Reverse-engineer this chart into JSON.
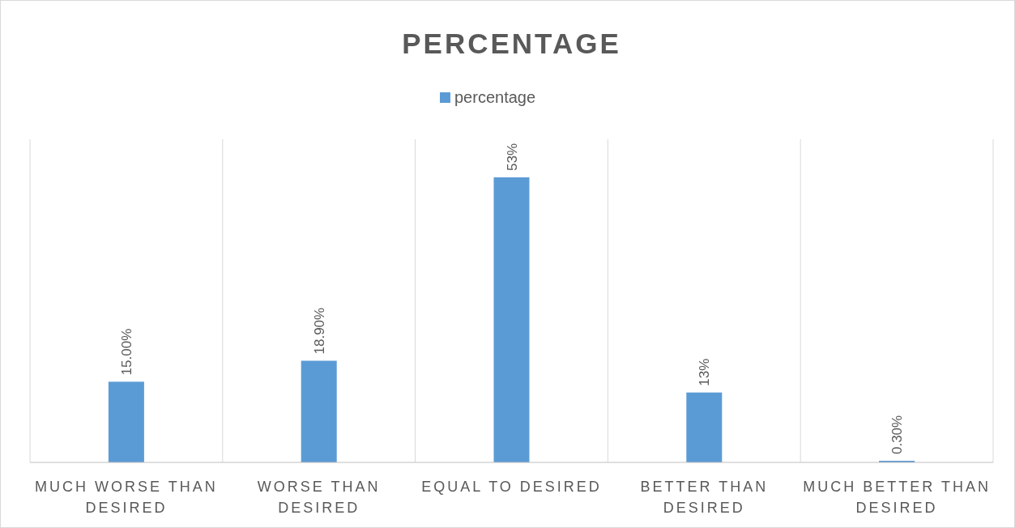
{
  "chart_data": {
    "type": "bar",
    "title": "PERCENTAGE",
    "categories": [
      "MUCH WORSE THAN DESIRED",
      "WORSE THAN DESIRED",
      "EQUAL TO DESIRED",
      "BETTER THAN DESIRED",
      "MUCH BETTER THAN DESIRED"
    ],
    "series": [
      {
        "name": "percentage",
        "color": "#5b9bd5",
        "values": [
          15,
          18.9,
          53,
          13,
          0.3
        ],
        "value_labels": [
          "15.00%",
          "18.90%",
          "53%",
          "13%",
          "0.30%"
        ]
      }
    ],
    "grid": "x",
    "legend": "top"
  }
}
